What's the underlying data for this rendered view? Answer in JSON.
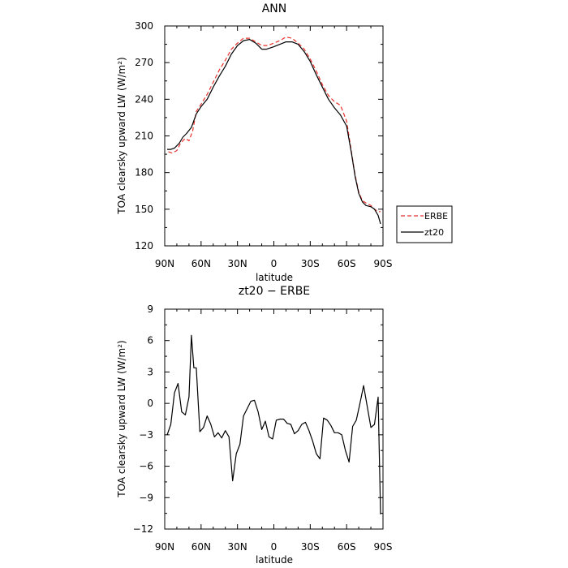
{
  "chart_data": [
    {
      "type": "line",
      "title": "ANN",
      "xlabel": "latitude",
      "ylabel": "TOA clearsky upward LW (W/m²)",
      "xlim": [
        90,
        -90
      ],
      "ylim": [
        120,
        300
      ],
      "yticks": [
        "120",
        "150",
        "180",
        "210",
        "240",
        "270",
        "300"
      ],
      "xticks": [
        "90N",
        "60N",
        "30N",
        "0",
        "30S",
        "60S",
        "90S"
      ],
      "legend_position": "outside-right",
      "series": [
        {
          "name": "ERBE",
          "color": "#e8302a",
          "dash": "dashed",
          "x": [
            87,
            84,
            80,
            77,
            73,
            70,
            67,
            64,
            60,
            55,
            50,
            45,
            40,
            35,
            30,
            25,
            20,
            15,
            10,
            5,
            0,
            -5,
            -10,
            -15,
            -20,
            -25,
            -30,
            -35,
            -40,
            -45,
            -50,
            -55,
            -60,
            -64,
            -67,
            -70,
            -73,
            -76,
            -80,
            -83,
            -86,
            -88
          ],
          "values": [
            197,
            196,
            198,
            204,
            208,
            206,
            214,
            230,
            236,
            244,
            254,
            264,
            272,
            281,
            286,
            290,
            290,
            287,
            284,
            284,
            286,
            288,
            291,
            290,
            286,
            281,
            273,
            263,
            252,
            243,
            238,
            235,
            222,
            197,
            178,
            164,
            157,
            155,
            153,
            150,
            148,
            148
          ]
        },
        {
          "name": "zt20",
          "color": "#000000",
          "dash": "solid",
          "x": [
            88,
            85,
            82,
            78,
            75,
            72,
            68,
            64,
            60,
            55,
            50,
            45,
            40,
            35,
            30,
            25,
            20,
            15,
            12,
            10,
            6,
            3,
            0,
            -5,
            -10,
            -15,
            -20,
            -25,
            -30,
            -35,
            -40,
            -45,
            -50,
            -55,
            -60,
            -64,
            -67,
            -70,
            -73,
            -76,
            -80,
            -83,
            -86,
            -88
          ],
          "values": [
            199,
            199,
            200,
            204,
            209,
            212,
            217,
            228,
            234,
            240,
            250,
            259,
            267,
            277,
            284,
            288,
            289,
            286,
            283,
            281,
            281,
            282,
            283,
            285,
            287,
            287,
            285,
            279,
            271,
            260,
            250,
            240,
            233,
            227,
            218,
            196,
            177,
            163,
            156,
            153,
            152,
            150,
            145,
            138
          ]
        }
      ]
    },
    {
      "type": "line",
      "title": "zt20 − ERBE",
      "xlabel": "latitude",
      "ylabel": "TOA clearsky upward LW (W/m²)",
      "xlim": [
        90,
        -90
      ],
      "ylim": [
        -12,
        9
      ],
      "yticks": [
        "−12",
        "−9",
        "−6",
        "−3",
        "0",
        "3",
        "6",
        "9"
      ],
      "xticks": [
        "90N",
        "60N",
        "30N",
        "0",
        "30S",
        "60S",
        "90S"
      ],
      "series": [
        {
          "name": "",
          "color": "#000000",
          "dash": "solid",
          "x": [
            88,
            85,
            82,
            79,
            76,
            73,
            70,
            68,
            66,
            64,
            61,
            58,
            55,
            52,
            49,
            46,
            43,
            40,
            37,
            34,
            31,
            28,
            25,
            22,
            19,
            16,
            13,
            10,
            7,
            4,
            1,
            -2,
            -5,
            -8,
            -11,
            -14,
            -17,
            -20,
            -23,
            -26,
            -29,
            -32,
            -35,
            -38,
            -41,
            -44,
            -47,
            -50,
            -53,
            -56,
            -59,
            -62,
            -65,
            -68,
            -71,
            -74,
            -77,
            -80,
            -83,
            -86,
            -88
          ],
          "values": [
            -3.0,
            -2.0,
            1.0,
            1.9,
            -0.8,
            -1.1,
            0.6,
            6.5,
            3.4,
            3.4,
            -2.7,
            -2.3,
            -1.2,
            -2.0,
            -3.2,
            -2.8,
            -3.3,
            -2.6,
            -3.2,
            -7.4,
            -4.8,
            -3.9,
            -1.2,
            -0.5,
            0.2,
            0.3,
            -0.8,
            -2.5,
            -1.7,
            -3.2,
            -3.4,
            -1.6,
            -1.5,
            -1.5,
            -1.9,
            -2.0,
            -2.9,
            -2.6,
            -2.0,
            -1.8,
            -2.6,
            -3.6,
            -4.8,
            -5.3,
            -1.4,
            -1.6,
            -2.1,
            -2.8,
            -2.8,
            -3.0,
            -4.5,
            -5.6,
            -2.2,
            -1.6,
            0.0,
            1.7,
            -0.3,
            -2.3,
            -2.0,
            0.6,
            -10.6
          ]
        }
      ]
    }
  ]
}
